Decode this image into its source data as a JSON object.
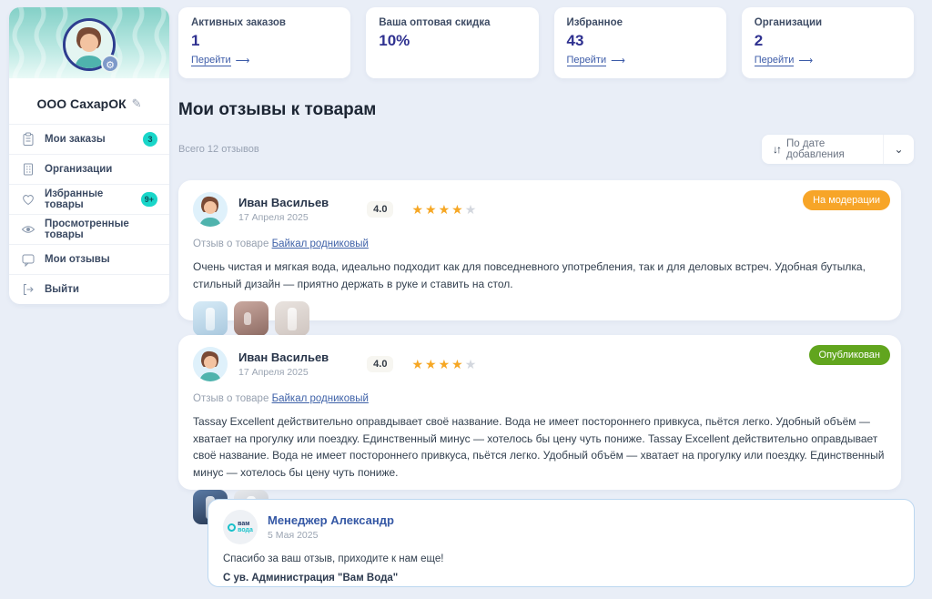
{
  "sidebar": {
    "company_name": "ООО СахарОК",
    "items": [
      {
        "label": "Мои заказы",
        "icon": "clipboard-icon",
        "badge": "3"
      },
      {
        "label": "Организации",
        "icon": "building-icon",
        "badge": ""
      },
      {
        "label": "Избранные товары",
        "icon": "heart-icon",
        "badge": "9+"
      },
      {
        "label": "Просмотренные товары",
        "icon": "eye-icon",
        "badge": ""
      },
      {
        "label": "Мои отзывы",
        "icon": "chat-icon",
        "badge": ""
      },
      {
        "label": "Выйти",
        "icon": "logout-icon",
        "badge": ""
      }
    ]
  },
  "stat_cards": [
    {
      "label": "Активных заказов",
      "value": "1",
      "link": "Перейти",
      "arrow": "⟶"
    },
    {
      "label": "Ваша оптовая скидка",
      "value": "10%",
      "link": "",
      "arrow": ""
    },
    {
      "label": "Избранное",
      "value": "43",
      "link": "Перейти",
      "arrow": "⟶"
    },
    {
      "label": "Организации",
      "value": "2",
      "link": "Перейти",
      "arrow": "⟶"
    }
  ],
  "page": {
    "title": "Мои отзывы к товарам",
    "total": "Всего 12 отзывов",
    "sort_icon": "↓↑",
    "sort_label": "По дате добавления",
    "sort_chevron": "⌄"
  },
  "reviews": [
    {
      "author": "Иван Васильев",
      "date": "17 Апреля 2025",
      "rating": "4.0",
      "stars_filled": 4,
      "status": "На модерации",
      "status_color": "#f7a528",
      "product_label": "Отзыв о товаре",
      "product_link": "Байкал родниковый",
      "text": "Очень чистая и мягкая вода, идеально подходит как для повседневного употребления, так и для деловых встреч. Удобная бутылка, стильный дизайн — приятно держать в руке и ставить на стол.",
      "thumbnails": [
        "bottle-splash",
        "person-drinking",
        "bottle-white"
      ]
    },
    {
      "author": "Иван Васильев",
      "date": "17 Апреля 2025",
      "rating": "4.0",
      "stars_filled": 4,
      "status": "Опубликован",
      "status_color": "#61a51e",
      "product_label": "Отзыв о товаре",
      "product_link": "Байкал родниковый",
      "text": "Tassay Excellent действительно оправдывает своё название. Вода не имеет постороннего привкуса, пьётся легко. Удобный объём — хватает на прогулку или поездку. Единственный минус — хотелось бы цену чуть пониже. Tassay Excellent действительно оправдывает своё название. Вода не имеет постороннего привкуса, пьётся легко. Удобный объём — хватает на прогулку или поездку. Единственный минус — хотелось бы цену чуть пониже.",
      "thumbnails": [
        "bottle-dark",
        "bottle-tassay"
      ]
    }
  ],
  "reply": {
    "author": "Менеджер Александр",
    "date": "5 Мая 2025",
    "text": "Спасибо за ваш отзыв, приходите к нам еще!",
    "signature": "С ув. Администрация \"Вам Вода\"",
    "logo_word1": "вам",
    "logo_word2": "вода"
  },
  "colors": {
    "accent_teal": "#19d6c9",
    "accent_navy": "#2f3190",
    "link_blue": "#3c5ba8",
    "status_moderation": "#f7a528",
    "status_published": "#61a51e",
    "star_orange": "#f6a724",
    "page_bg": "#e9eef7"
  }
}
